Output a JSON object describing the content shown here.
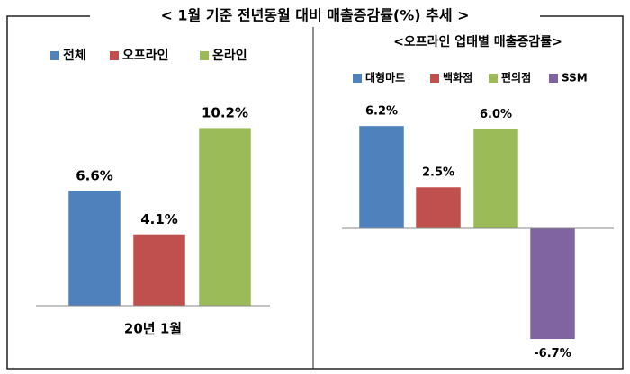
{
  "title": "< 1월 기준 전년동월 대비 매출증감률(%) 추세 >",
  "chart_data": [
    {
      "type": "bar",
      "categories": [
        "20년 1월"
      ],
      "series": [
        {
          "name": "전체",
          "color": "#4f81bd",
          "values": [
            6.6
          ],
          "value_labels": [
            "6.6%"
          ]
        },
        {
          "name": "오프라인",
          "color": "#c0504d",
          "values": [
            4.1
          ],
          "value_labels": [
            "4.1%"
          ]
        },
        {
          "name": "온라인",
          "color": "#9bbb59",
          "values": [
            10.2
          ],
          "value_labels": [
            "10.2%"
          ]
        }
      ]
    },
    {
      "type": "bar",
      "title": "<오프라인 업태별 매출증감률>",
      "categories": [
        null
      ],
      "series": [
        {
          "name": "대형마트",
          "color": "#4f81bd",
          "values": [
            6.2
          ],
          "value_labels": [
            "6.2%"
          ]
        },
        {
          "name": "백화점",
          "color": "#c0504d",
          "values": [
            2.5
          ],
          "value_labels": [
            "2.5%"
          ]
        },
        {
          "name": "편의점",
          "color": "#9bbb59",
          "values": [
            6.0
          ],
          "value_labels": [
            "6.0%"
          ]
        },
        {
          "name": "SSM",
          "color": "#8064a2",
          "values": [
            -6.7
          ],
          "value_labels": [
            "-6.7%"
          ]
        }
      ]
    }
  ]
}
